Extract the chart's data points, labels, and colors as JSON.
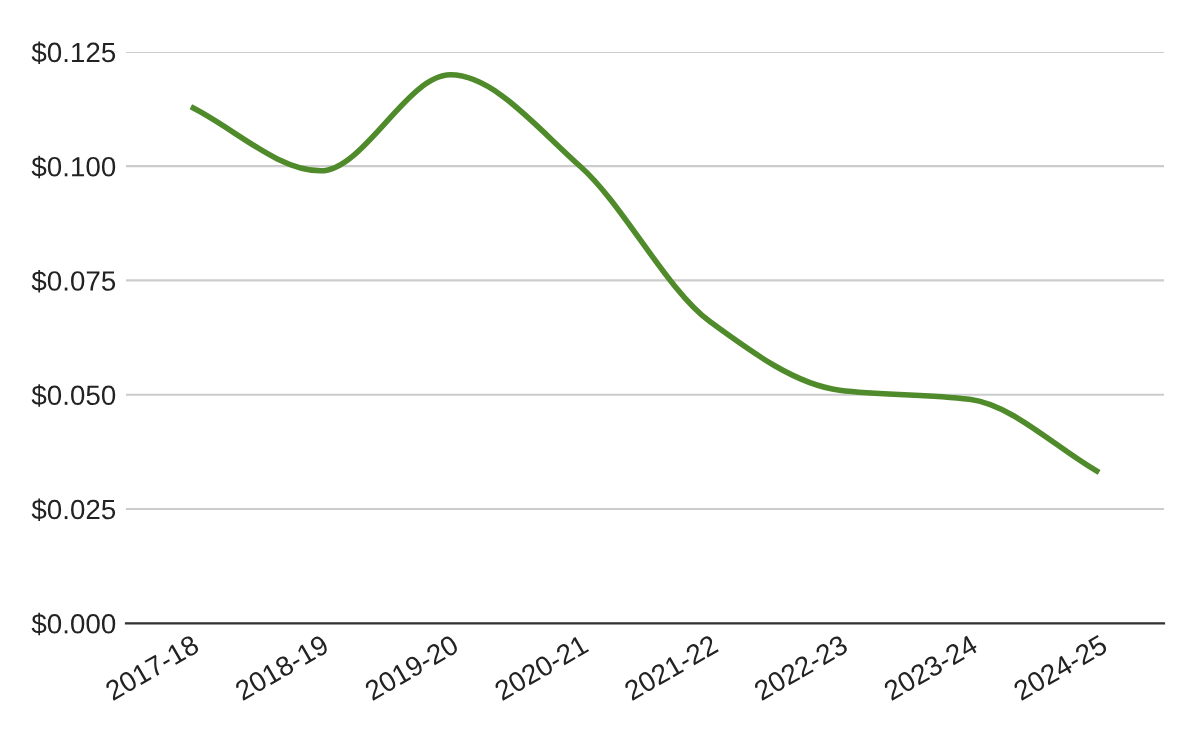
{
  "chart_data": {
    "type": "line",
    "categories": [
      "2017-18",
      "2018-19",
      "2019-20",
      "2020-21",
      "2021-22",
      "2022-23",
      "2023-24",
      "2024-25"
    ],
    "series": [
      {
        "color": "#4f8a2b",
        "values": [
          0.113,
          0.099,
          0.12,
          0.1,
          0.066,
          0.051,
          0.049,
          0.033
        ]
      }
    ],
    "ylim": [
      0,
      0.125
    ],
    "yticks": [
      {
        "value": 0,
        "label": "$0.000"
      },
      {
        "value": 0.025,
        "label": "$0.025"
      },
      {
        "value": 0.05,
        "label": "$0.050"
      },
      {
        "value": 0.075,
        "label": "$0.075"
      },
      {
        "value": 0.1,
        "label": "$0.100"
      },
      {
        "value": 0.125,
        "label": "$0.125"
      }
    ],
    "grid": "y",
    "marker": "none",
    "line_style": "solid"
  }
}
